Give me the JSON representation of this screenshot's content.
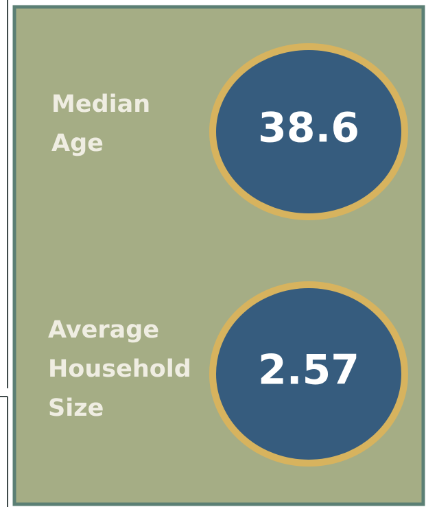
{
  "stats": [
    {
      "label_lines": [
        "Median",
        "Age"
      ],
      "value": 38.6
    },
    {
      "label_lines": [
        "Average",
        "Household",
        "Size"
      ],
      "value": 2.57
    }
  ]
}
